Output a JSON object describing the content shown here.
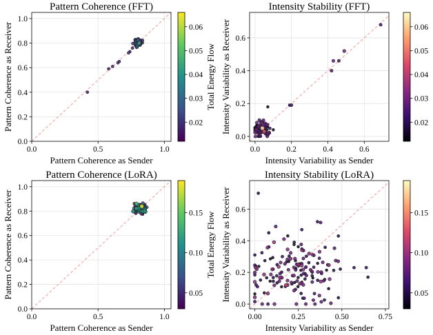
{
  "colormaps": {
    "viridis": [
      "#440154",
      "#3b528b",
      "#21918c",
      "#5ec962",
      "#fde725"
    ],
    "magma": [
      "#000004",
      "#3b0f70",
      "#8c2981",
      "#de4968",
      "#fe9f6d",
      "#fcfdbf"
    ]
  },
  "chart_data": [
    {
      "type": "scatter",
      "title": "Pattern Coherence (FFT)",
      "xlabel": "Pattern Coherence as Sender",
      "ylabel": "Pattern Coherence as Receiver",
      "xlim": [
        0.0,
        1.05
      ],
      "ylim": [
        0.0,
        1.05
      ],
      "xticks": [
        0.0,
        0.5,
        1.0
      ],
      "xtick_labels": [
        "0.0",
        "0.5",
        "1.0"
      ],
      "yticks": [
        0.0,
        0.2,
        0.4,
        0.6,
        0.8,
        1.0
      ],
      "ytick_labels": [
        "0.0",
        "0.2",
        "0.4",
        "0.6",
        "0.8",
        "1.0"
      ],
      "grid": true,
      "diagonal": true,
      "colormap": "viridis",
      "colorbar_label": "Total Energy Flow",
      "color_range": [
        0.012,
        0.066
      ],
      "colorbar_ticks": [
        0.02,
        0.03,
        0.04,
        0.05,
        0.06
      ],
      "colorbar_tick_labels": [
        "0.02",
        "0.03",
        "0.04",
        "0.05",
        "0.06"
      ],
      "cluster": {
        "center": [
          0.8,
          0.8
        ],
        "spread": [
          0.015,
          0.015
        ],
        "count": 70,
        "value_range": [
          0.012,
          0.028
        ]
      },
      "points": [
        {
          "x": 0.42,
          "y": 0.4,
          "value": 0.016
        },
        {
          "x": 0.58,
          "y": 0.59,
          "value": 0.017
        },
        {
          "x": 0.61,
          "y": 0.61,
          "value": 0.016
        },
        {
          "x": 0.65,
          "y": 0.64,
          "value": 0.02
        },
        {
          "x": 0.66,
          "y": 0.65,
          "value": 0.018
        },
        {
          "x": 0.73,
          "y": 0.72,
          "value": 0.021
        },
        {
          "x": 0.74,
          "y": 0.73,
          "value": 0.017
        },
        {
          "x": 0.76,
          "y": 0.76,
          "value": 0.019
        },
        {
          "x": 0.81,
          "y": 0.8,
          "value": 0.045
        },
        {
          "x": 0.8,
          "y": 0.79,
          "value": 0.03
        }
      ]
    },
    {
      "type": "scatter",
      "title": "Intensity Stability (FFT)",
      "xlabel": "Intensity Variability as Sender",
      "ylabel": "Intensity Variability as Receiver",
      "xlim": [
        -0.03,
        0.735
      ],
      "ylim": [
        -0.03,
        0.755
      ],
      "xticks": [
        0.0,
        0.2,
        0.4,
        0.6
      ],
      "xtick_labels": [
        "0.0",
        "0.2",
        "0.4",
        "0.6"
      ],
      "yticks": [
        0.0,
        0.2,
        0.4,
        0.6
      ],
      "ytick_labels": [
        "0.0",
        "0.2",
        "0.4",
        "0.6"
      ],
      "grid": true,
      "diagonal": true,
      "colormap": "magma",
      "colorbar_label": "Total Energy Flow",
      "color_range": [
        0.012,
        0.066
      ],
      "colorbar_ticks": [
        0.02,
        0.03,
        0.04,
        0.05,
        0.06
      ],
      "colorbar_tick_labels": [
        "0.02",
        "0.03",
        "0.04",
        "0.05",
        "0.06"
      ],
      "cluster": {
        "center": [
          0.03,
          0.04
        ],
        "spread": [
          0.025,
          0.025
        ],
        "count": 80,
        "value_range": [
          0.012,
          0.03
        ]
      },
      "points": [
        {
          "x": 0.19,
          "y": 0.19,
          "value": 0.02
        },
        {
          "x": 0.2,
          "y": 0.19,
          "value": 0.024
        },
        {
          "x": 0.42,
          "y": 0.4,
          "value": 0.025
        },
        {
          "x": 0.43,
          "y": 0.46,
          "value": 0.028
        },
        {
          "x": 0.46,
          "y": 0.46,
          "value": 0.022
        },
        {
          "x": 0.49,
          "y": 0.52,
          "value": 0.03
        },
        {
          "x": 0.69,
          "y": 0.68,
          "value": 0.023
        },
        {
          "x": 0.07,
          "y": 0.18,
          "value": 0.015
        },
        {
          "x": 0.1,
          "y": 0.04,
          "value": 0.015
        },
        {
          "x": 0.04,
          "y": 0.05,
          "value": 0.062
        },
        {
          "x": 0.05,
          "y": 0.03,
          "value": 0.045
        }
      ]
    },
    {
      "type": "scatter",
      "title": "Pattern Coherence (LoRA)",
      "xlabel": "Pattern Coherence as Sender",
      "ylabel": "Pattern Coherence as Receiver",
      "xlim": [
        0.0,
        1.05
      ],
      "ylim": [
        0.0,
        1.05
      ],
      "xticks": [
        0.0,
        0.5,
        1.0
      ],
      "xtick_labels": [
        "0.0",
        "0.5",
        "1.0"
      ],
      "yticks": [
        0.0,
        0.2,
        0.4,
        0.6,
        0.8,
        1.0
      ],
      "ytick_labels": [
        "0.0",
        "0.2",
        "0.4",
        "0.6",
        "0.8",
        "1.0"
      ],
      "grid": true,
      "diagonal": true,
      "colormap": "viridis",
      "colorbar_label": "Total Energy Flow",
      "color_range": [
        0.03,
        0.19
      ],
      "colorbar_ticks": [
        0.05,
        0.1,
        0.15
      ],
      "colorbar_tick_labels": [
        "0.05",
        "0.10",
        "0.15"
      ],
      "cluster": {
        "center": [
          0.82,
          0.82
        ],
        "spread": [
          0.022,
          0.02
        ],
        "count": 110,
        "value_range": [
          0.03,
          0.12
        ]
      },
      "points": [
        {
          "x": 0.83,
          "y": 0.84,
          "value": 0.18
        },
        {
          "x": 0.79,
          "y": 0.86,
          "value": 0.14
        },
        {
          "x": 0.85,
          "y": 0.8,
          "value": 0.12
        }
      ]
    },
    {
      "type": "scatter",
      "title": "Intensity Stability (LoRA)",
      "xlabel": "Intensity Variability as Sender",
      "ylabel": "Intensity Variability as Receiver",
      "xlim": [
        -0.03,
        0.77
      ],
      "ylim": [
        -0.03,
        0.78
      ],
      "xticks": [
        0.0,
        0.25,
        0.5,
        0.75
      ],
      "xtick_labels": [
        "0.00",
        "0.25",
        "0.50",
        "0.75"
      ],
      "yticks": [
        0.0,
        0.2,
        0.4,
        0.6
      ],
      "ytick_labels": [
        "0.0",
        "0.2",
        "0.4",
        "0.6"
      ],
      "grid": true,
      "diagonal": true,
      "colormap": "magma",
      "colorbar_label": "Total Energy Flow",
      "color_range": [
        0.03,
        0.19
      ],
      "colorbar_ticks": [
        0.05,
        0.1,
        0.15
      ],
      "colorbar_tick_labels": [
        "0.05",
        "0.10",
        "0.15"
      ],
      "cluster": {
        "center": [
          0.22,
          0.19
        ],
        "spread": [
          0.13,
          0.1
        ],
        "count": 150,
        "value_range": [
          0.03,
          0.1
        ]
      },
      "points": [
        {
          "x": 0.02,
          "y": 0.7,
          "value": 0.05
        },
        {
          "x": 0.12,
          "y": 0.49,
          "value": 0.07
        },
        {
          "x": 0.36,
          "y": 0.52,
          "value": 0.06
        },
        {
          "x": 0.08,
          "y": 0.45,
          "value": 0.05
        },
        {
          "x": 0.27,
          "y": 0.47,
          "value": 0.06
        },
        {
          "x": 0.48,
          "y": 0.43,
          "value": 0.05
        },
        {
          "x": 0.0,
          "y": 0.31,
          "value": 0.05
        },
        {
          "x": 0.65,
          "y": 0.17,
          "value": 0.05
        },
        {
          "x": 0.64,
          "y": 0.23,
          "value": 0.06
        },
        {
          "x": 0.57,
          "y": 0.23,
          "value": 0.05
        },
        {
          "x": 0.48,
          "y": 0.04,
          "value": 0.05
        },
        {
          "x": 0.18,
          "y": 0.12,
          "value": 0.12
        },
        {
          "x": 0.25,
          "y": 0.25,
          "value": 0.1
        }
      ]
    }
  ]
}
